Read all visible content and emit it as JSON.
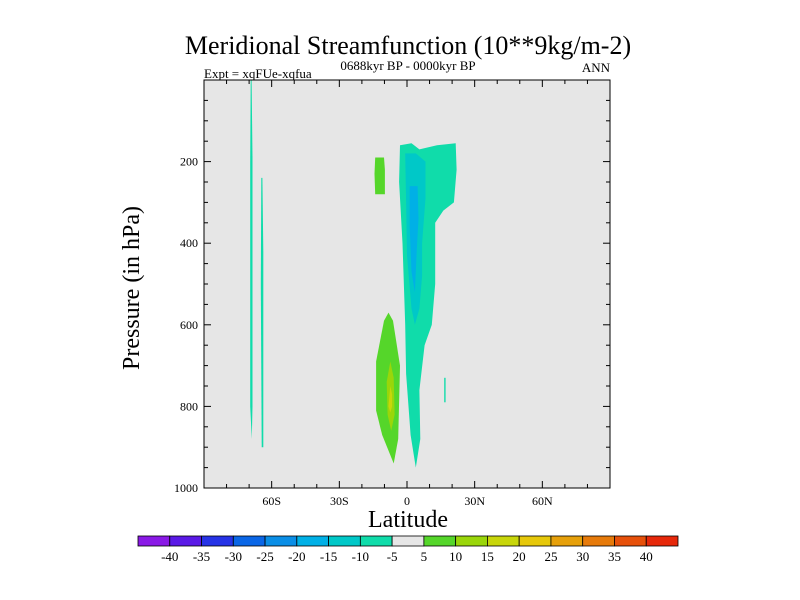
{
  "chart_data": {
    "type": "contour",
    "title": "Meridional Streamfunction (10**9kg/m-2)",
    "subtitle_left": "Expt = xqFUe-xqfua",
    "subtitle_center": "0688kyr BP - 0000kyr BP",
    "subtitle_right": "ANN",
    "xlabel": "Latitude",
    "ylabel": "Pressure (in hPa)",
    "xlim": [
      -90,
      90
    ],
    "ylim": [
      1000,
      0
    ],
    "x_ticks": [
      {
        "value": -60,
        "label": "60S"
      },
      {
        "value": -30,
        "label": "30S"
      },
      {
        "value": 0,
        "label": "0"
      },
      {
        "value": 30,
        "label": "30N"
      },
      {
        "value": 60,
        "label": "60N"
      }
    ],
    "y_ticks": [
      {
        "value": 200,
        "label": "200"
      },
      {
        "value": 400,
        "label": "400"
      },
      {
        "value": 600,
        "label": "600"
      },
      {
        "value": 800,
        "label": "800"
      },
      {
        "value": 1000,
        "label": "1000"
      }
    ],
    "background_color": "#e6e6e6",
    "colorbar": {
      "levels": [
        "-40",
        "-35",
        "-30",
        "-25",
        "-20",
        "-15",
        "-10",
        "-5",
        "5",
        "10",
        "15",
        "20",
        "25",
        "30",
        "35",
        "40"
      ],
      "colors": [
        "#8a19e6",
        "#5a19e6",
        "#2633e6",
        "#0a66e6",
        "#0a8ee6",
        "#00b0e6",
        "#00c8c8",
        "#10dcaa",
        "#e6e6e6",
        "#55d62a",
        "#9ad60a",
        "#c8d60a",
        "#e6c80a",
        "#e6a00a",
        "#e67a0a",
        "#e6500a",
        "#e6280a"
      ]
    },
    "regions": [
      {
        "level": "-10",
        "color": "#10dcaa",
        "polygon": [
          [
            -69.3,
            0
          ],
          [
            -68.9,
            0
          ],
          [
            -68.5,
            190
          ],
          [
            -68.5,
            800
          ],
          [
            -68.8,
            880
          ],
          [
            -69.5,
            800
          ],
          [
            -69.5,
            200
          ]
        ]
      },
      {
        "level": "-10",
        "color": "#10dcaa",
        "polygon": [
          [
            -64.6,
            240
          ],
          [
            -64.1,
            240
          ],
          [
            -63.7,
            420
          ],
          [
            -63.7,
            900
          ],
          [
            -64.4,
            900
          ],
          [
            -64.8,
            500
          ]
        ]
      },
      {
        "level": "5",
        "color": "#55d62a",
        "polygon": [
          [
            -14.1,
            190
          ],
          [
            -10.2,
            190
          ],
          [
            -9.8,
            220
          ],
          [
            -9.8,
            280
          ],
          [
            -14.1,
            280
          ],
          [
            -14.4,
            230
          ]
        ]
      },
      {
        "level": "5",
        "color": "#55d62a",
        "polygon": [
          [
            -8.2,
            570
          ],
          [
            -6.2,
            590
          ],
          [
            -3.1,
            700
          ],
          [
            -3.9,
            880
          ],
          [
            -5.9,
            940
          ],
          [
            -11.0,
            870
          ],
          [
            -13.7,
            810
          ],
          [
            -13.7,
            690
          ],
          [
            -10.2,
            590
          ]
        ]
      },
      {
        "level": "10",
        "color": "#9ad60a",
        "polygon": [
          [
            -7.4,
            690
          ],
          [
            -5.9,
            730
          ],
          [
            -5.5,
            820
          ],
          [
            -7.0,
            860
          ],
          [
            -8.6,
            820
          ],
          [
            -9.0,
            740
          ]
        ]
      },
      {
        "level": "15",
        "color": "#c8d60a",
        "polygon": [
          [
            -7.4,
            750
          ],
          [
            -6.6,
            770
          ],
          [
            -6.6,
            800
          ],
          [
            -7.4,
            815
          ],
          [
            -8.2,
            800
          ]
        ]
      },
      {
        "level": "-5",
        "color": "#10dcaa",
        "polygon": [
          [
            -3.1,
            160
          ],
          [
            2.0,
            155
          ],
          [
            5.5,
            170
          ],
          [
            13.3,
            160
          ],
          [
            21.6,
            155
          ],
          [
            22.0,
            220
          ],
          [
            20.8,
            300
          ],
          [
            16.1,
            320
          ],
          [
            12.5,
            350
          ],
          [
            12.5,
            500
          ],
          [
            11.0,
            600
          ],
          [
            7.8,
            650
          ],
          [
            5.5,
            760
          ],
          [
            5.9,
            880
          ],
          [
            3.9,
            950
          ],
          [
            1.6,
            870
          ],
          [
            -0.4,
            720
          ],
          [
            -0.8,
            600
          ],
          [
            -2.0,
            400
          ],
          [
            -3.5,
            250
          ]
        ]
      },
      {
        "level": "-10",
        "color": "#00c8c8",
        "polygon": [
          [
            -0.8,
            180
          ],
          [
            3.9,
            180
          ],
          [
            8.2,
            200
          ],
          [
            8.2,
            290
          ],
          [
            6.7,
            400
          ],
          [
            6.7,
            480
          ],
          [
            5.5,
            560
          ],
          [
            3.5,
            600
          ],
          [
            2.0,
            560
          ],
          [
            0,
            430
          ],
          [
            -0.4,
            300
          ]
        ]
      },
      {
        "level": "-15",
        "color": "#00b0e6",
        "polygon": [
          [
            1.2,
            260
          ],
          [
            4.7,
            260
          ],
          [
            5.1,
            340
          ],
          [
            4.3,
            420
          ],
          [
            3.5,
            520
          ],
          [
            2.0,
            470
          ],
          [
            1.2,
            360
          ]
        ]
      },
      {
        "level": "-10",
        "color": "#10dcaa",
        "polygon": [
          [
            16.5,
            730
          ],
          [
            17.1,
            730
          ],
          [
            17.1,
            790
          ],
          [
            16.5,
            790
          ]
        ]
      }
    ]
  }
}
